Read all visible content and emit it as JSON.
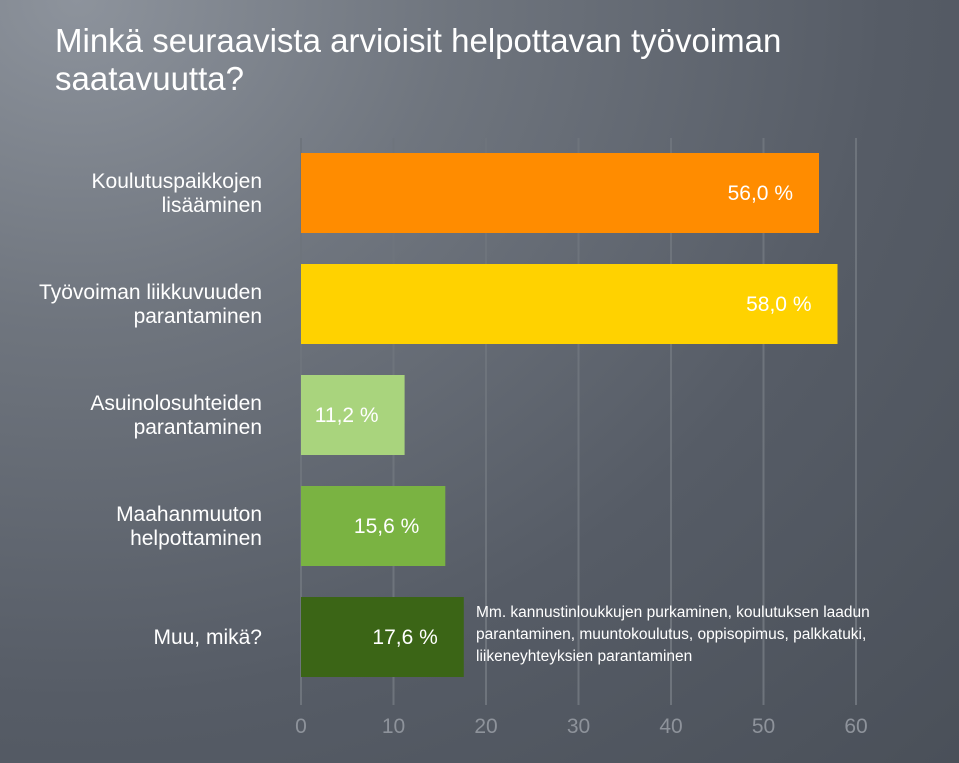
{
  "chart_data": {
    "type": "bar",
    "orientation": "horizontal",
    "title": "Minkä seuraavista arvioisit helpottavan työvoiman saatavuutta?",
    "categories": [
      [
        "Koulutuspaikkojen",
        "lisääminen"
      ],
      [
        "Työvoiman liikkuvuuden",
        "parantaminen"
      ],
      [
        "Asuinolosuhteiden",
        "parantaminen"
      ],
      [
        "Maahanmuuton",
        "helpottaminen"
      ],
      [
        "Muu, mikä?"
      ]
    ],
    "values": [
      56.0,
      58.0,
      11.2,
      15.6,
      17.6
    ],
    "value_labels": [
      "56,0 %",
      "58,0 %",
      "11,2 %",
      "15,6 %",
      "17,6 %"
    ],
    "colors": [
      "#ff8c00",
      "#ffd200",
      "#a9d47d",
      "#7ab342",
      "#3b6516"
    ],
    "xlim": [
      0,
      60
    ],
    "xticks": [
      0,
      10,
      20,
      30,
      40,
      50,
      60
    ],
    "grid": true,
    "annotation": "Mm. kannustinloukkujen purkaminen, koulutuksen laadun parantaminen, muuntokoulutus, oppisopimus, palkkatuki, liikeneyhteyksien parantaminen"
  }
}
